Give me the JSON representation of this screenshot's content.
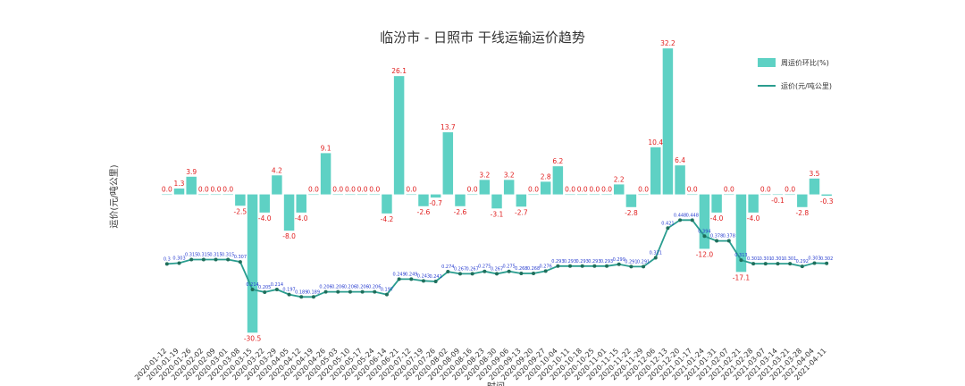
{
  "chart_data": {
    "type": "combo",
    "title": "临汾市 - 日照市 干线运输运价趋势",
    "y_label": "运价(元/吨公里)",
    "x_label": "时间",
    "legend": "upper right",
    "categories": [
      "2020-01-12",
      "2020-01-19",
      "2020-01-26",
      "2020-02-02",
      "2020-02-09",
      "2020-03-01",
      "2020-03-08",
      "2020-03-15",
      "2020-03-22",
      "2020-03-29",
      "2020-04-05",
      "2020-04-12",
      "2020-04-19",
      "2020-04-26",
      "2020-05-03",
      "2020-05-10",
      "2020-05-17",
      "2020-05-24",
      "2020-06-14",
      "2020-06-21",
      "2020-07-12",
      "2020-07-19",
      "2020-07-26",
      "2020-08-02",
      "2020-08-09",
      "2020-08-16",
      "2020-08-23",
      "2020-08-30",
      "2020-09-06",
      "2020-09-13",
      "2020-09-20",
      "2020-09-27",
      "2020-10-04",
      "2020-10-11",
      "2020-10-18",
      "2020-10-25",
      "2020-11-01",
      "2020-11-15",
      "2020-11-22",
      "2020-11-29",
      "2020-12-06",
      "2020-12-13",
      "2020-12-20",
      "2021-01-17",
      "2021-01-24",
      "2021-01-31",
      "2021-02-07",
      "2021-02-21",
      "2021-02-28",
      "2021-03-07",
      "2021-03-14",
      "2021-03-21",
      "2021-03-28",
      "2021-04-04",
      "2021-04-11"
    ],
    "ylim": [
      -33,
      35
    ],
    "y2lim": [
      0.03,
      1.07
    ],
    "series": [
      {
        "name": "周运价环比(%)",
        "type": "bar",
        "color": "#5ed1c4",
        "label_color": "#e02020",
        "values": [
          0,
          1.3,
          3.9,
          0,
          0,
          0,
          -2.5,
          -30.5,
          -4.0,
          4.2,
          -8.0,
          -4.0,
          0,
          9.1,
          0,
          0,
          0,
          0,
          -4.2,
          26.1,
          0,
          -2.6,
          -0.7,
          13.7,
          -2.6,
          0,
          3.2,
          -3.1,
          3.2,
          -2.7,
          0,
          2.8,
          6.2,
          0,
          0,
          0,
          0,
          2.2,
          -2.8,
          0,
          10.4,
          32.2,
          6.4,
          0,
          -12.0,
          -4.0,
          0,
          -17.1,
          -4.0,
          0,
          -0.1,
          0,
          -2.8,
          3.5,
          -0.3
        ],
        "value_labels": [
          "0.0",
          "1.3",
          "3.9",
          "0.0",
          "0.0",
          "0.0",
          "-2.5",
          "-30.5",
          "-4.0",
          "4.2",
          "-8.0",
          "-4.0",
          "0.0",
          "9.1",
          "0.0",
          "0.0",
          "0.0",
          "0.0",
          "-4.2",
          "26.1",
          "0.0",
          "-2.6",
          "-0.7",
          "13.7",
          "-2.6",
          "0.0",
          "3.2",
          "-3.1",
          "3.2",
          "-2.7",
          "0.0",
          "2.8",
          "6.2",
          "0.0",
          "0.0",
          "0.0",
          "0.0",
          "2.2",
          "-2.8",
          "0.0",
          "10.4",
          "32.2",
          "6.4",
          "0.0",
          "-12.0",
          "-4.0",
          "0.0",
          "-17.1",
          "-4.0",
          "0.0",
          "-0.1",
          "0.0",
          "-2.8",
          "3.5",
          "-0.3"
        ]
      },
      {
        "name": "运价(元/吨公里)",
        "type": "line",
        "axis": "y2",
        "color": "#2a9d8f",
        "label_color": "#2a3fd0",
        "values": [
          0.3,
          0.303,
          0.315,
          0.315,
          0.315,
          0.315,
          0.307,
          0.214,
          0.205,
          0.214,
          0.197,
          0.189,
          0.189,
          0.206,
          0.206,
          0.206,
          0.206,
          0.206,
          0.197,
          0.249,
          0.249,
          0.243,
          0.241,
          0.274,
          0.267,
          0.267,
          0.275,
          0.267,
          0.275,
          0.268,
          0.268,
          0.276,
          0.293,
          0.293,
          0.293,
          0.293,
          0.293,
          0.299,
          0.291,
          0.291,
          0.321,
          0.421,
          0.448,
          0.448,
          0.394,
          0.378,
          0.378,
          0.313,
          0.301,
          0.301,
          0.301,
          0.301,
          0.292,
          0.303,
          0.302
        ]
      }
    ]
  }
}
